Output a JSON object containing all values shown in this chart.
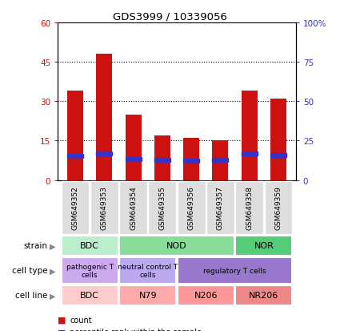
{
  "title": "GDS3999 / 10339056",
  "samples": [
    "GSM649352",
    "GSM649353",
    "GSM649354",
    "GSM649355",
    "GSM649356",
    "GSM649357",
    "GSM649358",
    "GSM649359"
  ],
  "counts": [
    34,
    48,
    25,
    17,
    16,
    15,
    34,
    31
  ],
  "percentile_ranks": [
    15.5,
    17,
    13.5,
    13,
    12.5,
    13,
    17,
    16
  ],
  "ylim_left": [
    0,
    60
  ],
  "ylim_right": [
    0,
    100
  ],
  "yticks_left": [
    0,
    15,
    30,
    45,
    60
  ],
  "yticks_right": [
    0,
    25,
    50,
    75,
    100
  ],
  "ytick_labels_right": [
    "0",
    "25",
    "50",
    "75",
    "100%"
  ],
  "bar_color": "#cc1111",
  "percentile_color": "#3333cc",
  "bar_width": 0.55,
  "strain_groups": [
    {
      "text": "BDC",
      "start": 0,
      "end": 2,
      "color": "#bbeecc"
    },
    {
      "text": "NOD",
      "start": 2,
      "end": 6,
      "color": "#88dd99"
    },
    {
      "text": "NOR",
      "start": 6,
      "end": 8,
      "color": "#55cc77"
    }
  ],
  "celltype_groups": [
    {
      "text": "pathogenic T\ncells",
      "start": 0,
      "end": 2,
      "color": "#ccaaee"
    },
    {
      "text": "neutral control T\ncells",
      "start": 2,
      "end": 4,
      "color": "#ccaaee"
    },
    {
      "text": "regulatory T cells",
      "start": 4,
      "end": 8,
      "color": "#9977cc"
    }
  ],
  "cellline_groups": [
    {
      "text": "BDC",
      "start": 0,
      "end": 2,
      "color": "#ffcccc"
    },
    {
      "text": "N79",
      "start": 2,
      "end": 4,
      "color": "#ffaaaa"
    },
    {
      "text": "N206",
      "start": 4,
      "end": 6,
      "color": "#ff9999"
    },
    {
      "text": "NR206",
      "start": 6,
      "end": 8,
      "color": "#ee8888"
    }
  ],
  "legend_count_color": "#cc1111",
  "legend_percentile_color": "#3333cc",
  "tick_label_color_left": "#cc1111",
  "tick_label_color_right": "#3333cc",
  "xticklabel_bg": "#dddddd"
}
